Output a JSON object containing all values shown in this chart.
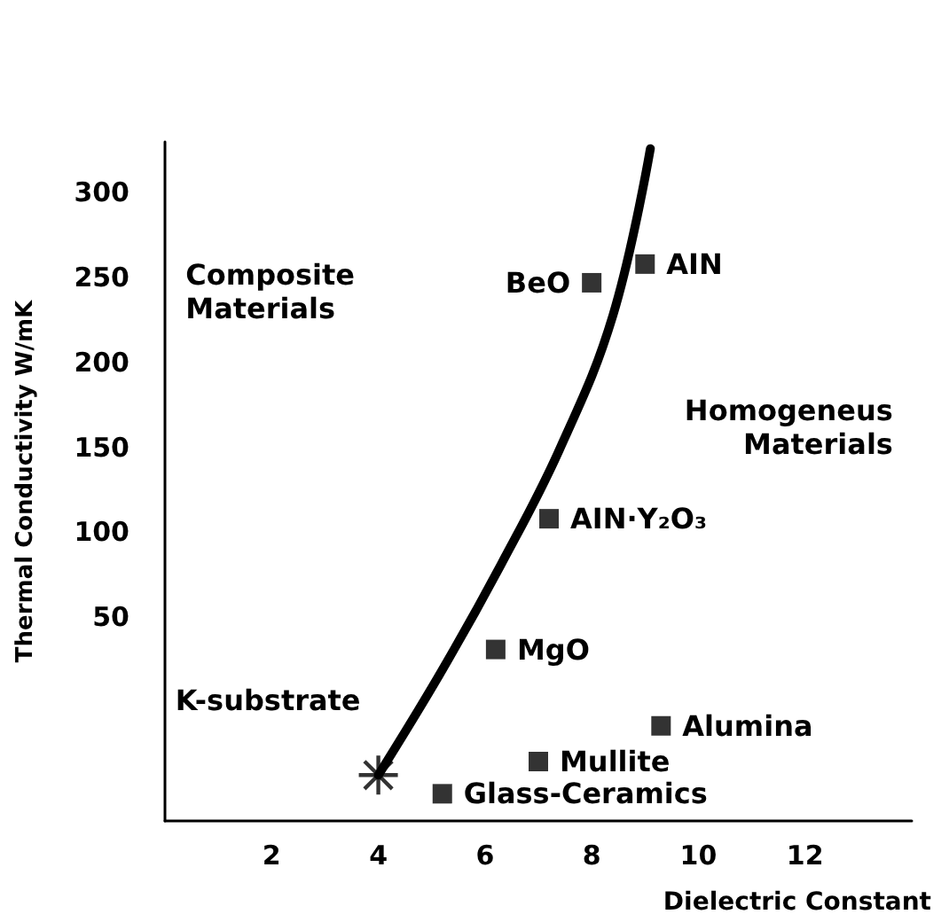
{
  "chart_data": {
    "type": "scatter",
    "xlabel": "Dielectric Constant",
    "ylabel": "Thermal Conductivity W/mK",
    "xlim": [
      0,
      14
    ],
    "ylim": [
      -70,
      330
    ],
    "xticks": [
      2,
      4,
      6,
      8,
      10,
      12
    ],
    "yticks": [
      50,
      100,
      150,
      200,
      250,
      300
    ],
    "grid": false,
    "series": [
      {
        "type": "line",
        "color": "#000000",
        "marker": "none",
        "line_style": "solid",
        "x": [
          4,
          5.2,
          6.3,
          7.4,
          8.4,
          9.1
        ],
        "values": [
          -43,
          19,
          81,
          149,
          228,
          326
        ]
      },
      {
        "color": "#000000",
        "marker": "square",
        "x": [
          9,
          8,
          7.2,
          6.2,
          9.3,
          7,
          5.2
        ],
        "values": [
          258,
          247,
          108,
          31,
          -14,
          -35,
          -54
        ]
      },
      {
        "color": "#000000",
        "marker": "star",
        "x": [
          4
        ],
        "values": [
          -43
        ]
      }
    ],
    "annotations": [
      "Composite Materials",
      "Homogeneus Materials",
      {
        "text": "AIN",
        "x": 9,
        "y": 258
      },
      {
        "text": "BeO",
        "x": 8,
        "y": 247
      },
      {
        "text": "AIN·Y₂O₃",
        "x": 7.2,
        "y": 108
      },
      {
        "text": "MgO",
        "x": 6.2,
        "y": 31
      },
      {
        "text": "K-substrate",
        "x": 4,
        "y": -43
      },
      {
        "text": "Alumina",
        "x": 9.3,
        "y": -14
      },
      {
        "text": "Mullite",
        "x": 7,
        "y": -35
      },
      {
        "text": "Glass-Ceramics",
        "x": 5.2,
        "y": -54
      }
    ]
  }
}
